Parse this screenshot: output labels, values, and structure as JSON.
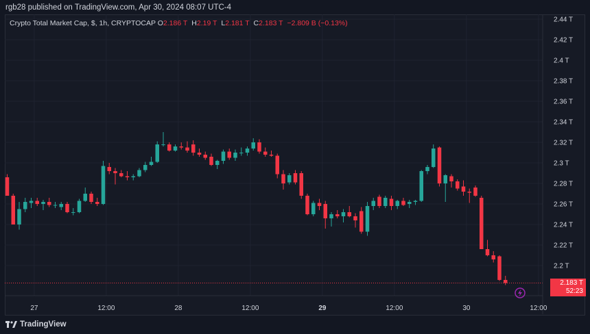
{
  "header": {
    "published_text": "rgb28 published on TradingView.com, Apr 30, 2024 08:07 UTC-4"
  },
  "legend": {
    "symbol": "Crypto Total Market Cap, $, 1h, CRYPTOCAP",
    "o_label": "O",
    "o_value": "2.186 T",
    "h_label": "H",
    "h_value": "2.19 T",
    "l_label": "L",
    "l_value": "2.181 T",
    "c_label": "C",
    "c_value": "2.183 T",
    "change": "−2.809 B (−0.13%)"
  },
  "price_tag": {
    "price": "2.183 T",
    "countdown": "52:23"
  },
  "footer": {
    "brand": "TradingView"
  },
  "icons": {
    "event_marker": "lightning-bolt-icon",
    "brand_logo": "tradingview-logo-icon"
  },
  "colors": {
    "up": "#26a69a",
    "down": "#f23645",
    "background": "#161a25",
    "grid": "#1f2330",
    "text": "#d1d4dc",
    "event": "#9c27b0"
  },
  "chart_data": {
    "type": "candlestick",
    "y_axis": {
      "min": 2.18,
      "max": 2.44,
      "ticks": [
        "2.2 T",
        "2.22 T",
        "2.24 T",
        "2.26 T",
        "2.28 T",
        "2.3 T",
        "2.32 T",
        "2.34 T",
        "2.36 T",
        "2.38 T",
        "2.4 T",
        "2.42 T",
        "2.44 T"
      ],
      "tick_values": [
        2.2,
        2.22,
        2.24,
        2.26,
        2.28,
        2.3,
        2.32,
        2.34,
        2.36,
        2.38,
        2.4,
        2.42,
        2.44
      ]
    },
    "x_axis": {
      "labels": [
        "27",
        "12:00",
        "28",
        "12:00",
        "29",
        "12:00",
        "30",
        "12:00"
      ],
      "bold": [
        false,
        false,
        false,
        false,
        true,
        false,
        false,
        false
      ]
    },
    "grid": true,
    "last_price": 2.183,
    "candles": [
      {
        "o": 2.286,
        "h": 2.289,
        "l": 2.268,
        "c": 2.268
      },
      {
        "o": 2.268,
        "h": 2.27,
        "l": 2.24,
        "c": 2.24
      },
      {
        "o": 2.24,
        "h": 2.262,
        "l": 2.235,
        "c": 2.255
      },
      {
        "o": 2.255,
        "h": 2.266,
        "l": 2.252,
        "c": 2.262
      },
      {
        "o": 2.261,
        "h": 2.266,
        "l": 2.256,
        "c": 2.263
      },
      {
        "o": 2.263,
        "h": 2.266,
        "l": 2.258,
        "c": 2.26
      },
      {
        "o": 2.26,
        "h": 2.264,
        "l": 2.254,
        "c": 2.262
      },
      {
        "o": 2.262,
        "h": 2.266,
        "l": 2.257,
        "c": 2.259
      },
      {
        "o": 2.259,
        "h": 2.262,
        "l": 2.256,
        "c": 2.259
      },
      {
        "o": 2.257,
        "h": 2.262,
        "l": 2.254,
        "c": 2.26
      },
      {
        "o": 2.26,
        "h": 2.262,
        "l": 2.251,
        "c": 2.252
      },
      {
        "o": 2.252,
        "h": 2.256,
        "l": 2.249,
        "c": 2.252
      },
      {
        "o": 2.252,
        "h": 2.265,
        "l": 2.251,
        "c": 2.263
      },
      {
        "o": 2.263,
        "h": 2.276,
        "l": 2.262,
        "c": 2.27
      },
      {
        "o": 2.27,
        "h": 2.272,
        "l": 2.26,
        "c": 2.262
      },
      {
        "o": 2.262,
        "h": 2.266,
        "l": 2.258,
        "c": 2.26
      },
      {
        "o": 2.26,
        "h": 2.302,
        "l": 2.259,
        "c": 2.297
      },
      {
        "o": 2.296,
        "h": 2.3,
        "l": 2.289,
        "c": 2.292
      },
      {
        "o": 2.292,
        "h": 2.295,
        "l": 2.279,
        "c": 2.29
      },
      {
        "o": 2.29,
        "h": 2.293,
        "l": 2.286,
        "c": 2.287
      },
      {
        "o": 2.287,
        "h": 2.292,
        "l": 2.283,
        "c": 2.286
      },
      {
        "o": 2.286,
        "h": 2.289,
        "l": 2.283,
        "c": 2.287
      },
      {
        "o": 2.287,
        "h": 2.295,
        "l": 2.286,
        "c": 2.293
      },
      {
        "o": 2.293,
        "h": 2.301,
        "l": 2.291,
        "c": 2.298
      },
      {
        "o": 2.298,
        "h": 2.306,
        "l": 2.297,
        "c": 2.301
      },
      {
        "o": 2.301,
        "h": 2.321,
        "l": 2.3,
        "c": 2.318
      },
      {
        "o": 2.318,
        "h": 2.33,
        "l": 2.316,
        "c": 2.318
      },
      {
        "o": 2.318,
        "h": 2.32,
        "l": 2.311,
        "c": 2.312
      },
      {
        "o": 2.312,
        "h": 2.318,
        "l": 2.311,
        "c": 2.316
      },
      {
        "o": 2.316,
        "h": 2.32,
        "l": 2.313,
        "c": 2.315
      },
      {
        "o": 2.315,
        "h": 2.321,
        "l": 2.31,
        "c": 2.312
      },
      {
        "o": 2.318,
        "h": 2.322,
        "l": 2.307,
        "c": 2.31
      },
      {
        "o": 2.31,
        "h": 2.314,
        "l": 2.306,
        "c": 2.308
      },
      {
        "o": 2.308,
        "h": 2.311,
        "l": 2.303,
        "c": 2.305
      },
      {
        "o": 2.306,
        "h": 2.309,
        "l": 2.297,
        "c": 2.298
      },
      {
        "o": 2.298,
        "h": 2.303,
        "l": 2.294,
        "c": 2.302
      },
      {
        "o": 2.302,
        "h": 2.313,
        "l": 2.299,
        "c": 2.311
      },
      {
        "o": 2.311,
        "h": 2.314,
        "l": 2.303,
        "c": 2.305
      },
      {
        "o": 2.305,
        "h": 2.313,
        "l": 2.302,
        "c": 2.31
      },
      {
        "o": 2.31,
        "h": 2.315,
        "l": 2.307,
        "c": 2.31
      },
      {
        "o": 2.31,
        "h": 2.316,
        "l": 2.307,
        "c": 2.314
      },
      {
        "o": 2.314,
        "h": 2.324,
        "l": 2.312,
        "c": 2.32
      },
      {
        "o": 2.32,
        "h": 2.323,
        "l": 2.309,
        "c": 2.311
      },
      {
        "o": 2.311,
        "h": 2.315,
        "l": 2.306,
        "c": 2.308
      },
      {
        "o": 2.308,
        "h": 2.312,
        "l": 2.306,
        "c": 2.307
      },
      {
        "o": 2.307,
        "h": 2.309,
        "l": 2.285,
        "c": 2.289
      },
      {
        "o": 2.289,
        "h": 2.293,
        "l": 2.274,
        "c": 2.28
      },
      {
        "o": 2.281,
        "h": 2.29,
        "l": 2.279,
        "c": 2.288
      },
      {
        "o": 2.29,
        "h": 2.293,
        "l": 2.279,
        "c": 2.281
      },
      {
        "o": 2.29,
        "h": 2.292,
        "l": 2.265,
        "c": 2.268
      },
      {
        "o": 2.268,
        "h": 2.27,
        "l": 2.249,
        "c": 2.25
      },
      {
        "o": 2.25,
        "h": 2.263,
        "l": 2.248,
        "c": 2.261
      },
      {
        "o": 2.261,
        "h": 2.265,
        "l": 2.254,
        "c": 2.258
      },
      {
        "o": 2.26,
        "h": 2.263,
        "l": 2.236,
        "c": 2.246
      },
      {
        "o": 2.246,
        "h": 2.252,
        "l": 2.238,
        "c": 2.25
      },
      {
        "o": 2.25,
        "h": 2.254,
        "l": 2.246,
        "c": 2.248
      },
      {
        "o": 2.248,
        "h": 2.255,
        "l": 2.242,
        "c": 2.252
      },
      {
        "o": 2.252,
        "h": 2.258,
        "l": 2.247,
        "c": 2.248
      },
      {
        "o": 2.248,
        "h": 2.251,
        "l": 2.237,
        "c": 2.244
      },
      {
        "o": 2.253,
        "h": 2.257,
        "l": 2.231,
        "c": 2.233
      },
      {
        "o": 2.233,
        "h": 2.262,
        "l": 2.229,
        "c": 2.258
      },
      {
        "o": 2.258,
        "h": 2.266,
        "l": 2.254,
        "c": 2.263
      },
      {
        "o": 2.267,
        "h": 2.269,
        "l": 2.256,
        "c": 2.258
      },
      {
        "o": 2.258,
        "h": 2.268,
        "l": 2.256,
        "c": 2.266
      },
      {
        "o": 2.265,
        "h": 2.268,
        "l": 2.254,
        "c": 2.258
      },
      {
        "o": 2.258,
        "h": 2.264,
        "l": 2.255,
        "c": 2.263
      },
      {
        "o": 2.263,
        "h": 2.266,
        "l": 2.258,
        "c": 2.259
      },
      {
        "o": 2.26,
        "h": 2.264,
        "l": 2.256,
        "c": 2.262
      },
      {
        "o": 2.262,
        "h": 2.264,
        "l": 2.259,
        "c": 2.263
      },
      {
        "o": 2.263,
        "h": 2.293,
        "l": 2.262,
        "c": 2.292
      },
      {
        "o": 2.292,
        "h": 2.298,
        "l": 2.289,
        "c": 2.296
      },
      {
        "o": 2.296,
        "h": 2.318,
        "l": 2.295,
        "c": 2.314
      },
      {
        "o": 2.315,
        "h": 2.316,
        "l": 2.277,
        "c": 2.28
      },
      {
        "o": 2.28,
        "h": 2.289,
        "l": 2.262,
        "c": 2.288
      },
      {
        "o": 2.287,
        "h": 2.289,
        "l": 2.276,
        "c": 2.282
      },
      {
        "o": 2.282,
        "h": 2.284,
        "l": 2.273,
        "c": 2.275
      },
      {
        "o": 2.277,
        "h": 2.283,
        "l": 2.268,
        "c": 2.272
      },
      {
        "o": 2.272,
        "h": 2.275,
        "l": 2.261,
        "c": 2.271
      },
      {
        "o": 2.276,
        "h": 2.278,
        "l": 2.267,
        "c": 2.268
      },
      {
        "o": 2.266,
        "h": 2.268,
        "l": 2.216,
        "c": 2.216
      },
      {
        "o": 2.216,
        "h": 2.225,
        "l": 2.209,
        "c": 2.21
      },
      {
        "o": 2.21,
        "h": 2.214,
        "l": 2.203,
        "c": 2.206
      },
      {
        "o": 2.209,
        "h": 2.21,
        "l": 2.185,
        "c": 2.186
      },
      {
        "o": 2.186,
        "h": 2.19,
        "l": 2.181,
        "c": 2.183
      }
    ]
  }
}
